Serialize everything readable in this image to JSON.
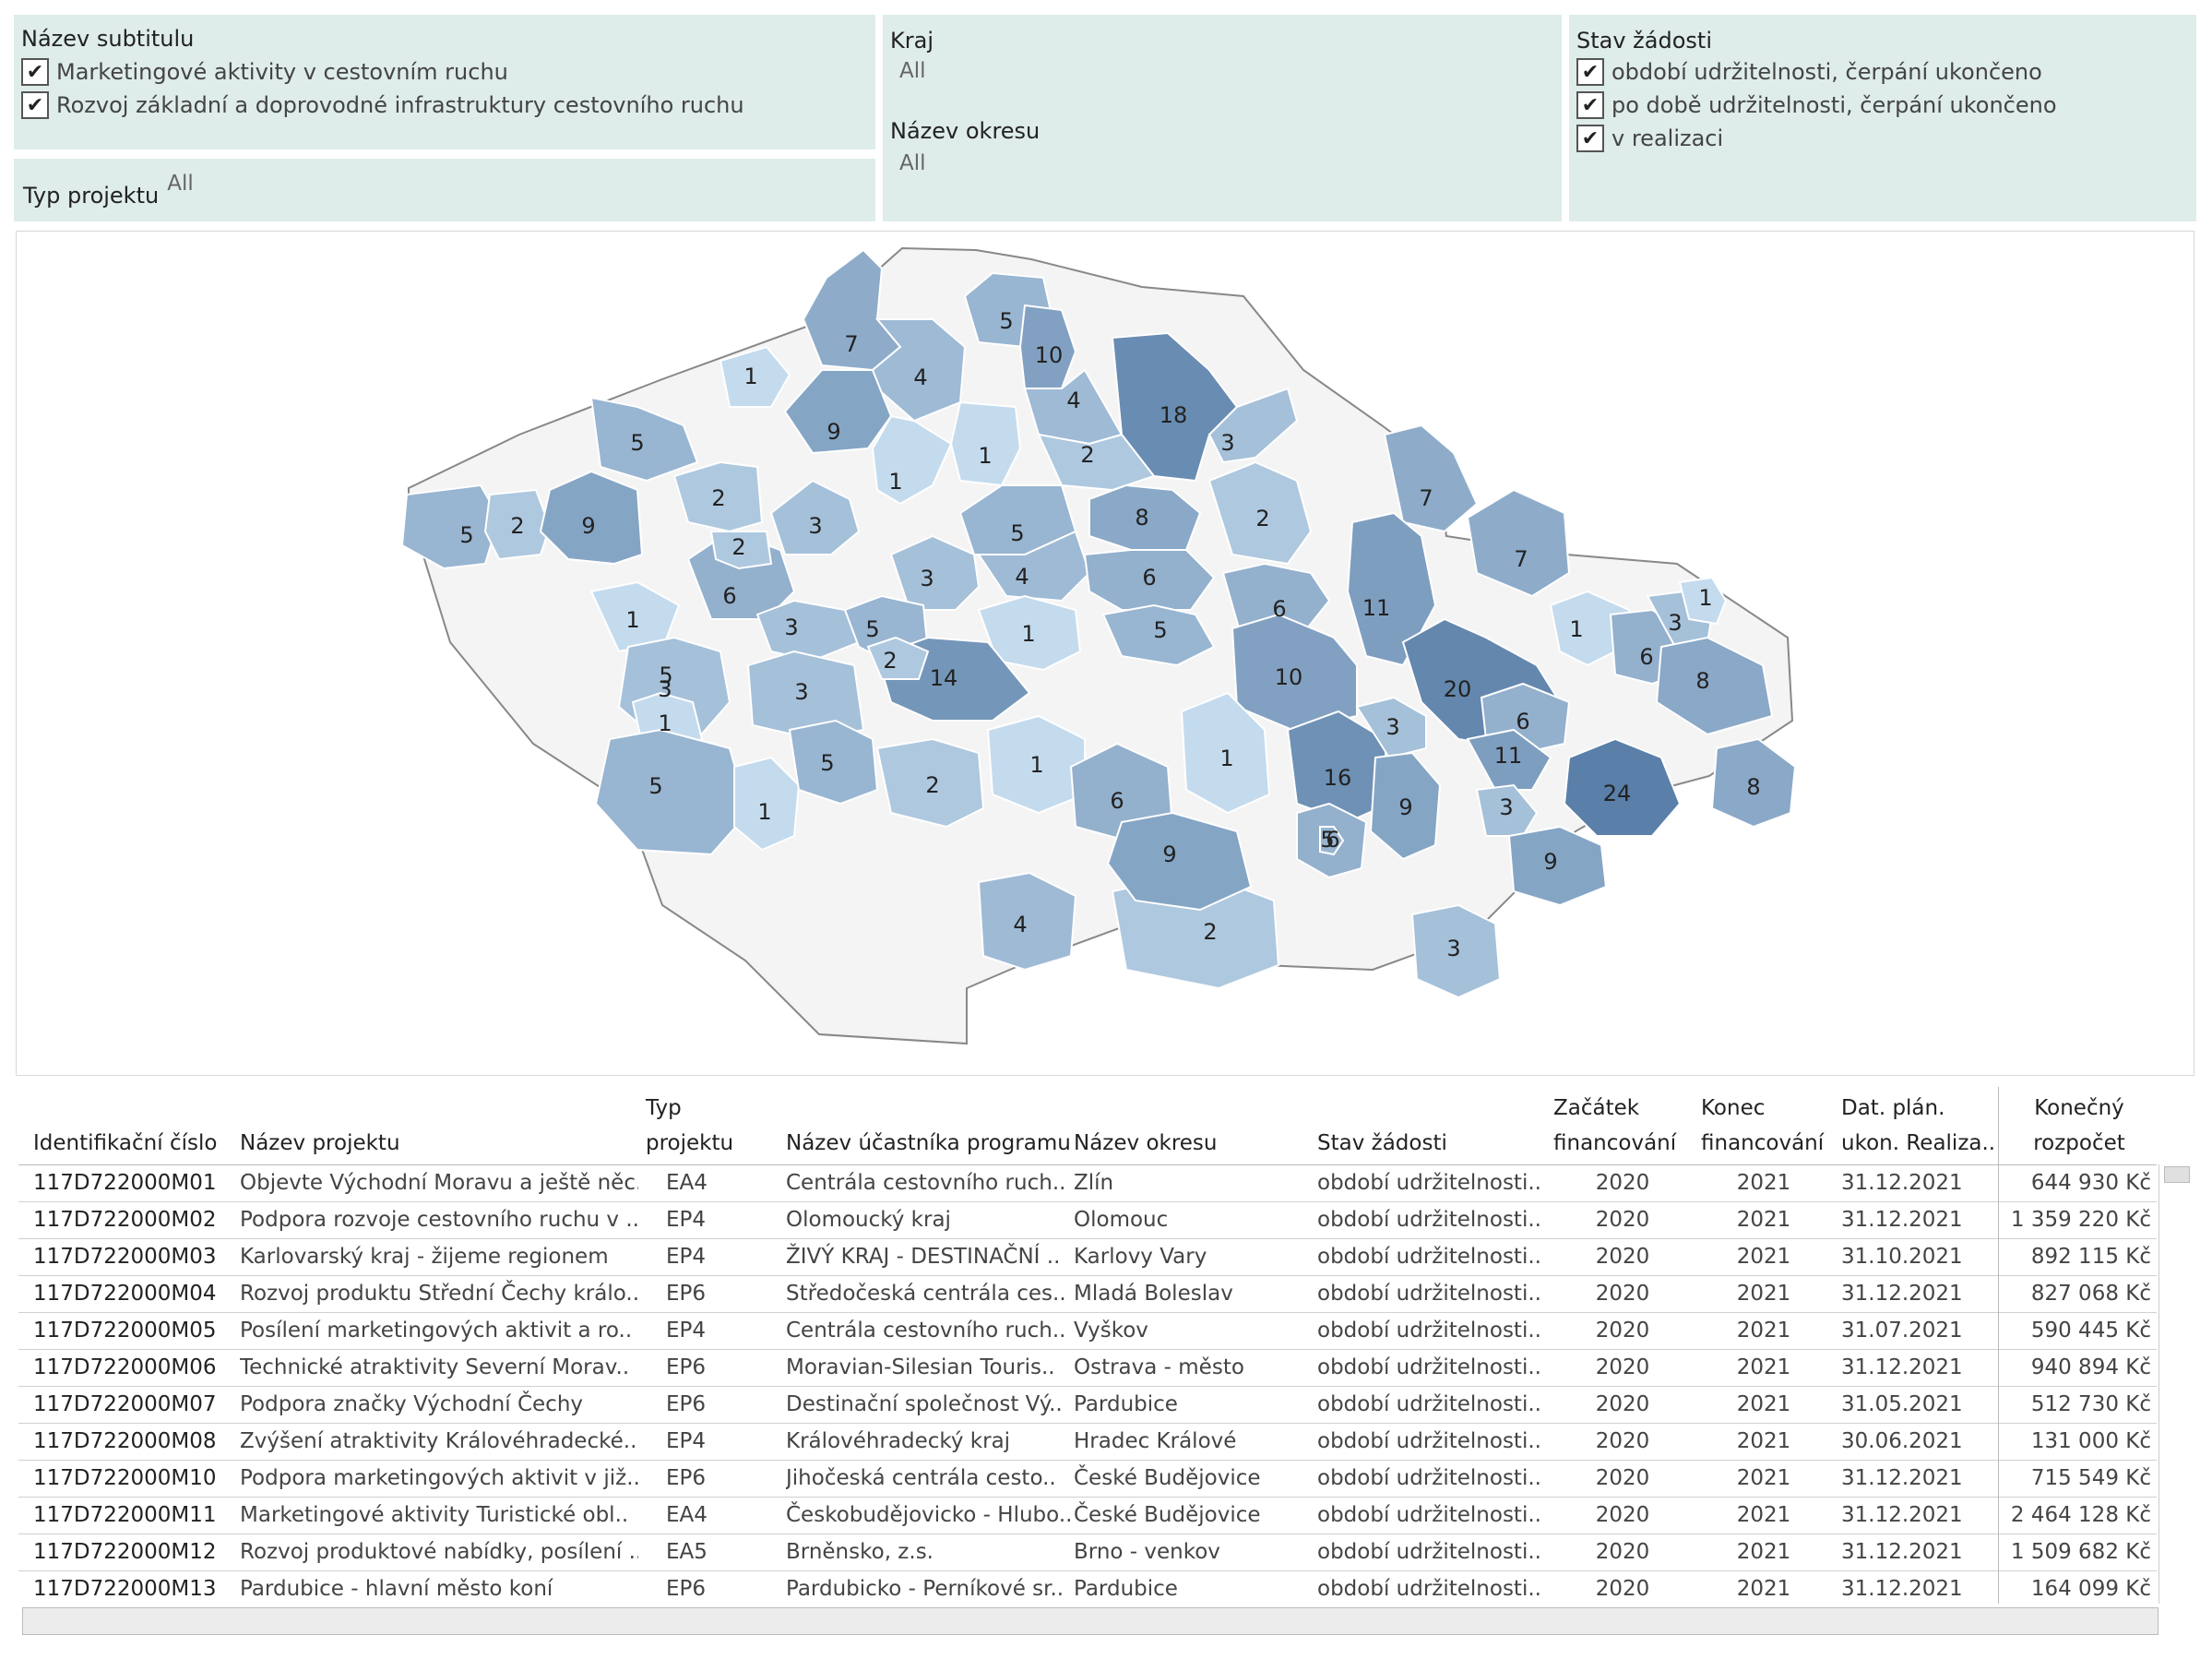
{
  "filters": {
    "subtitle": {
      "title": "Název subtitulu",
      "check_mark": "✔",
      "items": [
        {
          "label": "Marketingové aktivity v cestovním ruchu",
          "checked": true
        },
        {
          "label": "Rozvoj základní a doprovodné infrastruktury cestovního ruchu",
          "checked": true
        }
      ]
    },
    "project_type": {
      "title": "Typ projektu",
      "value": "All"
    },
    "kraj": {
      "title": "Kraj",
      "value": "All"
    },
    "okres": {
      "title": "Název okresu",
      "value": "All"
    },
    "status": {
      "title": "Stav žádosti",
      "items": [
        {
          "label": "období udržitelnosti, čerpání ukončeno",
          "checked": true
        },
        {
          "label": "po době udržitelnosti, čerpání ukončeno",
          "checked": true
        },
        {
          "label": "v realizaci",
          "checked": true
        }
      ]
    }
  },
  "map": {
    "color_scale": [
      "#c4dbee",
      "#5a7fa8"
    ],
    "value_range": [
      1,
      24
    ],
    "regions": [
      {
        "name": "d01",
        "value": 7
      },
      {
        "name": "d02",
        "value": 5
      },
      {
        "name": "d03",
        "value": 10
      },
      {
        "name": "d04",
        "value": 1
      },
      {
        "name": "d05",
        "value": 4
      },
      {
        "name": "d06",
        "value": 18
      },
      {
        "name": "d07",
        "value": 4
      },
      {
        "name": "d08",
        "value": 9
      },
      {
        "name": "d09",
        "value": 3
      },
      {
        "name": "d10",
        "value": 5
      },
      {
        "name": "d11",
        "value": 1
      },
      {
        "name": "d12",
        "value": 2
      },
      {
        "name": "d13",
        "value": 1
      },
      {
        "name": "d14",
        "value": 2
      },
      {
        "name": "d15",
        "value": 5
      },
      {
        "name": "d16",
        "value": 2
      },
      {
        "name": "d17",
        "value": 9
      },
      {
        "name": "d18",
        "value": 3
      },
      {
        "name": "d19",
        "value": 5
      },
      {
        "name": "d20",
        "value": 8
      },
      {
        "name": "d21",
        "value": 2
      },
      {
        "name": "d22",
        "value": 6
      },
      {
        "name": "d23",
        "value": 2
      },
      {
        "name": "d24",
        "value": 4
      },
      {
        "name": "d25",
        "value": 6
      },
      {
        "name": "d26",
        "value": 7
      },
      {
        "name": "d27",
        "value": 7
      },
      {
        "name": "d28",
        "value": 3
      },
      {
        "name": "d29",
        "value": 11
      },
      {
        "name": "d30",
        "value": 1
      },
      {
        "name": "d31",
        "value": 3
      },
      {
        "name": "d32",
        "value": 5
      },
      {
        "name": "d33",
        "value": 1
      },
      {
        "name": "d34",
        "value": 5
      },
      {
        "name": "d35",
        "value": 6
      },
      {
        "name": "d36",
        "value": 1
      },
      {
        "name": "d37",
        "value": 5
      },
      {
        "name": "d38",
        "value": 14
      },
      {
        "name": "d39",
        "value": 2
      },
      {
        "name": "d40",
        "value": 10
      },
      {
        "name": "d41",
        "value": 20
      },
      {
        "name": "d42",
        "value": 6
      },
      {
        "name": "d43",
        "value": 3
      },
      {
        "name": "d44",
        "value": 1
      },
      {
        "name": "d45",
        "value": 8
      },
      {
        "name": "d46",
        "value": 3
      },
      {
        "name": "d47",
        "value": 1
      },
      {
        "name": "d48",
        "value": 3
      },
      {
        "name": "d49",
        "value": 6
      },
      {
        "name": "d50",
        "value": 5
      },
      {
        "name": "d51",
        "value": 1
      },
      {
        "name": "d52",
        "value": 5
      },
      {
        "name": "d53",
        "value": 2
      },
      {
        "name": "d54",
        "value": 1
      },
      {
        "name": "d55",
        "value": 6
      },
      {
        "name": "d56",
        "value": 1
      },
      {
        "name": "d57",
        "value": 16
      },
      {
        "name": "d58",
        "value": 3
      },
      {
        "name": "d59",
        "value": 6
      },
      {
        "name": "d60",
        "value": 9
      },
      {
        "name": "d61",
        "value": 5
      },
      {
        "name": "d62",
        "value": 11
      },
      {
        "name": "d63",
        "value": 24
      },
      {
        "name": "d64",
        "value": 3
      },
      {
        "name": "d65",
        "value": 8
      },
      {
        "name": "d66",
        "value": 9
      },
      {
        "name": "d67",
        "value": 4
      },
      {
        "name": "d68",
        "value": 2
      },
      {
        "name": "d69",
        "value": 3
      },
      {
        "name": "d70",
        "value": 9
      }
    ]
  },
  "table": {
    "headers": {
      "id": "Identifikační číslo",
      "name": "Název projektu",
      "type_1": "Typ",
      "type_2": "projektu",
      "participant": "Název účastníka programu",
      "okres": "Název okresu",
      "status": "Stav žádosti",
      "start_1": "Začátek",
      "start_2": "financování",
      "end_1": "Konec",
      "end_2": "financování",
      "plan_1": "Dat. plán.",
      "plan_2": "ukon. Realiza..",
      "budget_1": "Konečný",
      "budget_2": "rozpočet"
    },
    "rows": [
      {
        "id": "117D722000M01",
        "name": "Objevte Východní Moravu a ještě něc..",
        "type": "EA4",
        "participant": "Centrála cestovního ruch..",
        "okres": "Zlín",
        "status": "období udržitelnosti..",
        "start": "2020",
        "end": "2021",
        "plan": "31.12.2021",
        "budget": "644 930 Kč"
      },
      {
        "id": "117D722000M02",
        "name": "Podpora rozvoje cestovního ruchu v ..",
        "type": "EP4",
        "participant": "Olomoucký kraj",
        "okres": "Olomouc",
        "status": "období udržitelnosti..",
        "start": "2020",
        "end": "2021",
        "plan": "31.12.2021",
        "budget": "1 359 220 Kč"
      },
      {
        "id": "117D722000M03",
        "name": "Karlovarský kraj - žijeme regionem",
        "type": "EP4",
        "participant": "ŽIVÝ KRAJ - DESTINAČNÍ ..",
        "okres": "Karlovy Vary",
        "status": "období udržitelnosti..",
        "start": "2020",
        "end": "2021",
        "plan": "31.10.2021",
        "budget": "892 115 Kč"
      },
      {
        "id": "117D722000M04",
        "name": "Rozvoj produktu Střední Čechy králo..",
        "type": "EP6",
        "participant": "Středočeská centrála ces..",
        "okres": "Mladá Boleslav",
        "status": "období udržitelnosti..",
        "start": "2020",
        "end": "2021",
        "plan": "31.12.2021",
        "budget": "827 068 Kč"
      },
      {
        "id": "117D722000M05",
        "name": "Posílení marketingových aktivit a ro..",
        "type": "EP4",
        "participant": "Centrála cestovního ruch..",
        "okres": "Vyškov",
        "status": "období udržitelnosti..",
        "start": "2020",
        "end": "2021",
        "plan": "31.07.2021",
        "budget": "590 445 Kč"
      },
      {
        "id": "117D722000M06",
        "name": "Technické atraktivity Severní Morav..",
        "type": "EP6",
        "participant": "Moravian-Silesian Touris..",
        "okres": "Ostrava - město",
        "status": "období udržitelnosti..",
        "start": "2020",
        "end": "2021",
        "plan": "31.12.2021",
        "budget": "940 894 Kč"
      },
      {
        "id": "117D722000M07",
        "name": "Podpora značky Východní Čechy",
        "type": "EP6",
        "participant": "Destinační společnost Vý..",
        "okres": "Pardubice",
        "status": "období udržitelnosti..",
        "start": "2020",
        "end": "2021",
        "plan": "31.05.2021",
        "budget": "512 730 Kč"
      },
      {
        "id": "117D722000M08",
        "name": "Zvýšení atraktivity Královéhradecké..",
        "type": "EP4",
        "participant": "Královéhradecký kraj",
        "okres": "Hradec Králové",
        "status": "období udržitelnosti..",
        "start": "2020",
        "end": "2021",
        "plan": "30.06.2021",
        "budget": "131 000 Kč"
      },
      {
        "id": "117D722000M10",
        "name": "Podpora marketingových aktivit v již..",
        "type": "EP6",
        "participant": "Jihočeská centrála cesto..",
        "okres": "České Budějovice",
        "status": "období udržitelnosti..",
        "start": "2020",
        "end": "2021",
        "plan": "31.12.2021",
        "budget": "715 549 Kč"
      },
      {
        "id": "117D722000M11",
        "name": "Marketingové aktivity Turistické obl..",
        "type": "EA4",
        "participant": "Českobudějovicko - Hlubo..",
        "okres": "České Budějovice",
        "status": "období udržitelnosti..",
        "start": "2020",
        "end": "2021",
        "plan": "31.12.2021",
        "budget": "2 464 128 Kč"
      },
      {
        "id": "117D722000M12",
        "name": "Rozvoj produktové nabídky, posílení ..",
        "type": "EA5",
        "participant": "Brněnsko, z.s.",
        "okres": "Brno - venkov",
        "status": "období udržitelnosti..",
        "start": "2020",
        "end": "2021",
        "plan": "31.12.2021",
        "budget": "1 509 682 Kč"
      },
      {
        "id": "117D722000M13",
        "name": "Pardubice - hlavní město koní",
        "type": "EP6",
        "participant": "Pardubicko - Perníkové sr..",
        "okres": "Pardubice",
        "status": "období udržitelnosti..",
        "start": "2020",
        "end": "2021",
        "plan": "31.12.2021",
        "budget": "164 099 Kč"
      }
    ]
  }
}
